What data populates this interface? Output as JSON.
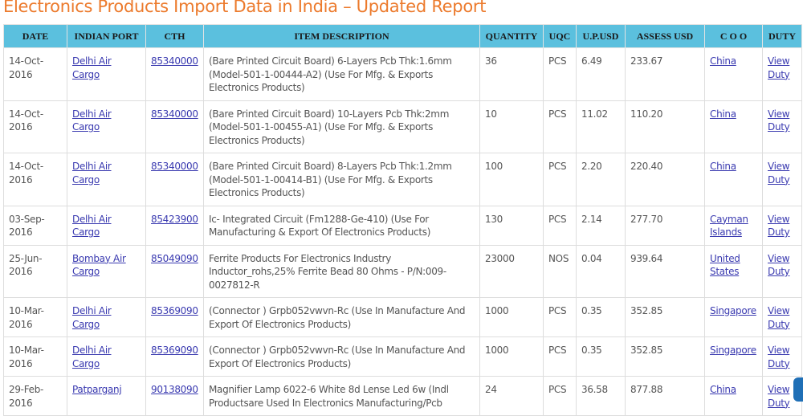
{
  "title": "Electronics Products Import Data in India – Updated Report",
  "columns": [
    "DATE",
    "INDIAN PORT",
    "CTH",
    "ITEM DESCRIPTION",
    "QUANTITY",
    "UQC",
    "U.P.USD",
    "ASSESS USD",
    "C O O",
    "DUTY"
  ],
  "rows": [
    {
      "date": "14-Oct-2016",
      "port": "Delhi Air Cargo",
      "cth": "85340000",
      "desc": "(Bare Printed Circuit Board) 6-Layers Pcb Thk:1.6mm (Model-501-1-00444-A2) (Use For Mfg. & Exports Electronics Products)",
      "qty": "36",
      "uqc": "PCS",
      "up": "6.49",
      "assess": "233.67",
      "coo": "China",
      "duty": "View Duty"
    },
    {
      "date": "14-Oct-2016",
      "port": "Delhi Air Cargo",
      "cth": "85340000",
      "desc": "(Bare Printed Circuit Board) 10-Layers Pcb Thk:2mm (Model-501-1-00455-A1) (Use For Mfg. & Exports Electronics Products)",
      "qty": "10",
      "uqc": "PCS",
      "up": "11.02",
      "assess": "110.20",
      "coo": "China",
      "duty": "View Duty"
    },
    {
      "date": "14-Oct-2016",
      "port": "Delhi Air Cargo",
      "cth": "85340000",
      "desc": "(Bare Printed Circuit Board) 8-Layers Pcb Thk:1.2mm (Model-501-1-00414-B1) (Use For Mfg. & Exports Electronics Products)",
      "qty": "100",
      "uqc": "PCS",
      "up": "2.20",
      "assess": "220.40",
      "coo": "China",
      "duty": "View Duty"
    },
    {
      "date": "03-Sep-2016",
      "port": "Delhi Air Cargo",
      "cth": "85423900",
      "desc": "Ic- Integrated Circuit (Fm1288-Ge-410) (Use For Manufacturing & Export Of Electronics Products)",
      "qty": "130",
      "uqc": "PCS",
      "up": "2.14",
      "assess": "277.70",
      "coo": "Cayman Islands",
      "duty": "View Duty"
    },
    {
      "date": "25-Jun-2016",
      "port": "Bombay Air Cargo",
      "cth": "85049090",
      "desc": "Ferrite Products For Electronics Industry Inductor_rohs,25% Ferrite Bead 80 Ohms - P/N:009-0027812-R",
      "qty": "23000",
      "uqc": "NOS",
      "up": "0.04",
      "assess": "939.64",
      "coo": "United States",
      "duty": "View Duty"
    },
    {
      "date": "10-Mar-2016",
      "port": "Delhi Air Cargo",
      "cth": "85369090",
      "desc": "(Connector ) Grpb052vwvn-Rc (Use In Manufacture And Export Of Electronics Products)",
      "qty": "1000",
      "uqc": "PCS",
      "up": "0.35",
      "assess": "352.85",
      "coo": "Singapore",
      "duty": "View Duty"
    },
    {
      "date": "10-Mar-2016",
      "port": "Delhi Air Cargo",
      "cth": "85369090",
      "desc": "(Connector ) Grpb052vwvn-Rc (Use In Manufacture And Export Of Electronics Products)",
      "qty": "1000",
      "uqc": "PCS",
      "up": "0.35",
      "assess": "352.85",
      "coo": "Singapore",
      "duty": "View Duty"
    },
    {
      "date": "29-Feb-2016",
      "port": "Patparganj",
      "cth": "90138090",
      "desc": "Magnifier Lamp 6022-6 White 8d Lense Led 6w (Indl Productsare Used In Electronics Manufacturing/Pcb",
      "qty": "24",
      "uqc": "PCS",
      "up": "36.58",
      "assess": "877.88",
      "coo": "China",
      "duty": "View Duty"
    }
  ]
}
